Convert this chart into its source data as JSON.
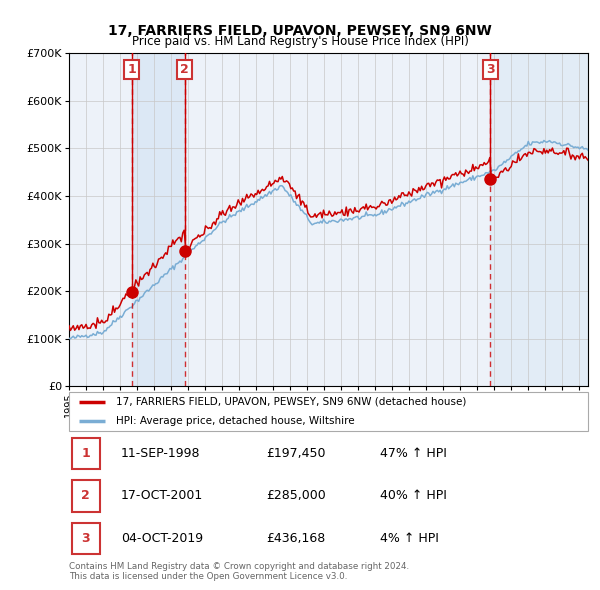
{
  "title1": "17, FARRIERS FIELD, UPAVON, PEWSEY, SN9 6NW",
  "title2": "Price paid vs. HM Land Registry's House Price Index (HPI)",
  "ylim": [
    0,
    700000
  ],
  "yticks": [
    0,
    100000,
    200000,
    300000,
    400000,
    500000,
    600000,
    700000
  ],
  "ytick_labels": [
    "£0",
    "£100K",
    "£200K",
    "£300K",
    "£400K",
    "£500K",
    "£600K",
    "£700K"
  ],
  "xmin": 1995.0,
  "xmax": 2025.5,
  "sales": [
    {
      "num": 1,
      "date_dec": 1998.69,
      "price": 197450,
      "label": "11-SEP-1998",
      "pct": "47%"
    },
    {
      "num": 2,
      "date_dec": 2001.79,
      "price": 285000,
      "label": "17-OCT-2001",
      "pct": "40%"
    },
    {
      "num": 3,
      "date_dec": 2019.75,
      "price": 436168,
      "label": "04-OCT-2019",
      "pct": "4%"
    }
  ],
  "legend_red": "17, FARRIERS FIELD, UPAVON, PEWSEY, SN9 6NW (detached house)",
  "legend_blue": "HPI: Average price, detached house, Wiltshire",
  "footnote1": "Contains HM Land Registry data © Crown copyright and database right 2024.",
  "footnote2": "This data is licensed under the Open Government Licence v3.0.",
  "bg_color": "#edf2f9",
  "red_color": "#cc0000",
  "blue_color": "#7aadd4",
  "shaded_color": "#dce8f5",
  "grid_color": "#c8c8c8",
  "box_color": "#cc3333",
  "table_rows": [
    {
      "num": 1,
      "date": "11-SEP-1998",
      "price": "£197,450",
      "pct": "47% ↑ HPI"
    },
    {
      "num": 2,
      "date": "17-OCT-2001",
      "price": "£285,000",
      "pct": "40% ↑ HPI"
    },
    {
      "num": 3,
      "date": "04-OCT-2019",
      "price": "£436,168",
      "pct": "4% ↑ HPI"
    }
  ]
}
